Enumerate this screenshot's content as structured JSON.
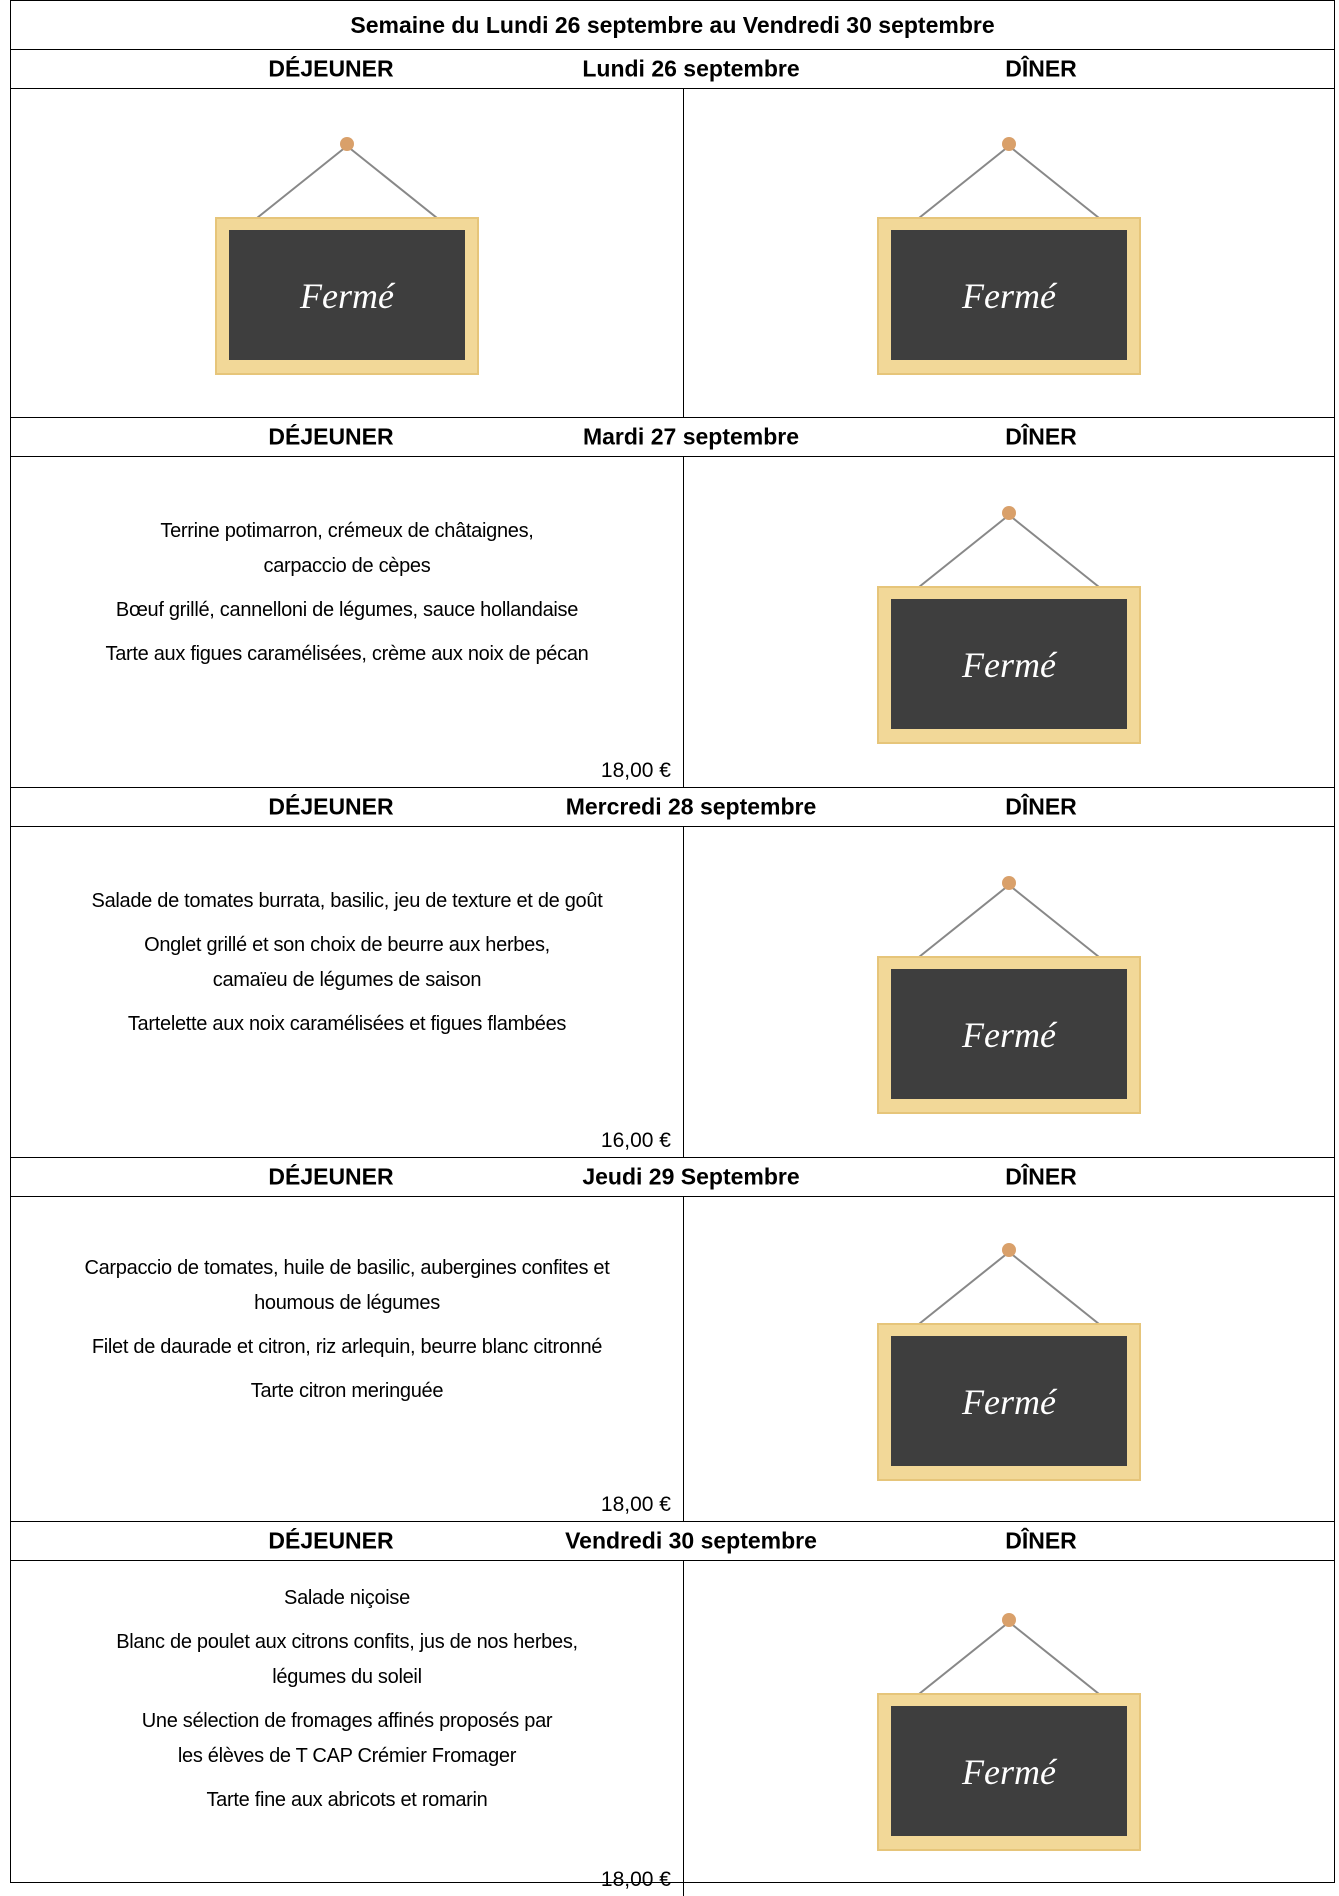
{
  "header": {
    "title": "Semaine du Lundi 26 septembre au Vendredi 30 septembre"
  },
  "days": [
    {
      "lunch_label": "DÉJEUNER",
      "date": "Lundi 26 septembre",
      "dinner_label": "DÎNER",
      "lunch": {
        "sign": "Fermé"
      },
      "dinner": {
        "sign": "Fermé"
      }
    },
    {
      "lunch_label": "DÉJEUNER",
      "date": "Mardi 27 septembre",
      "dinner_label": "DÎNER",
      "lunch": {
        "items": [
          [
            "Terrine potimarron, crémeux de châtaignes,",
            "carpaccio de cèpes"
          ],
          [
            "Bœuf grillé, cannelloni de légumes, sauce hollandaise"
          ],
          [
            "Tarte aux figues caramélisées, crème aux noix de pécan"
          ]
        ],
        "price": "18,00 €"
      },
      "dinner": {
        "sign": "Fermé"
      }
    },
    {
      "lunch_label": "DÉJEUNER",
      "date": "Mercredi 28 septembre",
      "dinner_label": "DÎNER",
      "lunch": {
        "items": [
          [
            "Salade de tomates burrata, basilic, jeu de texture et de goût"
          ],
          [
            "Onglet grillé et son choix de beurre aux herbes,",
            "camaïeu de légumes de saison"
          ],
          [
            "Tartelette aux noix caramélisées et figues flambées"
          ]
        ],
        "price": "16,00 €"
      },
      "dinner": {
        "sign": "Fermé"
      }
    },
    {
      "lunch_label": "DÉJEUNER",
      "date": "Jeudi 29 Septembre",
      "dinner_label": "DÎNER",
      "lunch": {
        "items": [
          [
            "Carpaccio de tomates, huile de basilic, aubergines confites et",
            "houmous de légumes"
          ],
          [
            "Filet de daurade et citron, riz arlequin, beurre blanc citronné"
          ],
          [
            "Tarte citron meringuée"
          ]
        ],
        "price": "18,00 €"
      },
      "dinner": {
        "sign": "Fermé"
      }
    },
    {
      "lunch_label": "DÉJEUNER",
      "date": "Vendredi 30 septembre",
      "dinner_label": "DÎNER",
      "lunch": {
        "items": [
          [
            "Salade niçoise"
          ],
          [
            "Blanc de poulet aux citrons confits, jus de nos herbes,",
            "légumes du soleil"
          ],
          [
            "Une sélection de fromages affinés proposés par",
            "les élèves de T CAP Crémier Fromager"
          ],
          [
            "Tarte fine aux abricots et romarin"
          ]
        ],
        "price": "18,00 €"
      },
      "dinner": {
        "sign": "Fermé"
      }
    }
  ]
}
